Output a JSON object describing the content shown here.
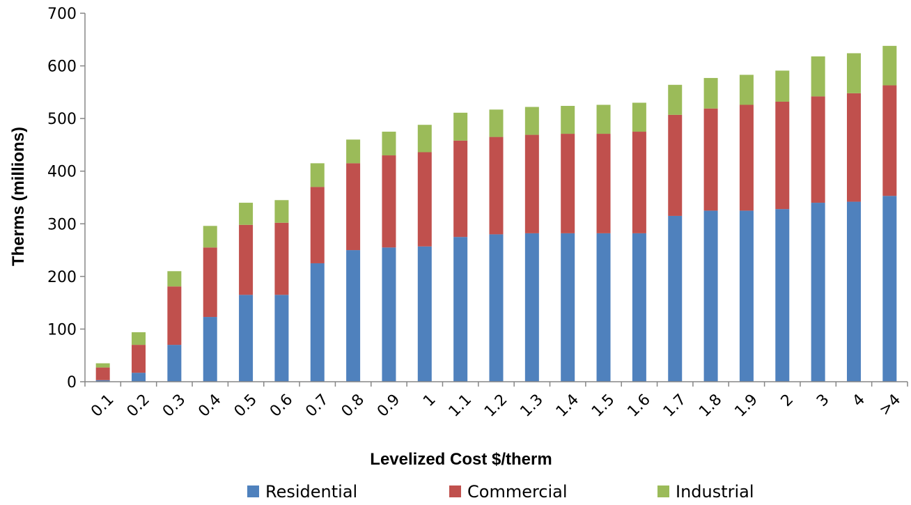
{
  "chart_data": {
    "type": "bar",
    "stacked": true,
    "categories": [
      "0.1",
      "0.2",
      "0.3",
      "0.4",
      "0.5",
      "0.6",
      "0.7",
      "0.8",
      "0.9",
      "1",
      "1.1",
      "1.2",
      "1.3",
      "1.4",
      "1.5",
      "1.6",
      "1.7",
      "1.8",
      "1.9",
      "2",
      "3",
      "4",
      ">4"
    ],
    "series": [
      {
        "name": "Residential",
        "color": "#4F81BD",
        "values": [
          3,
          17,
          70,
          123,
          165,
          165,
          225,
          250,
          255,
          257,
          275,
          280,
          282,
          282,
          282,
          282,
          315,
          325,
          325,
          328,
          340,
          342,
          353
        ]
      },
      {
        "name": "Commercial",
        "color": "#C0504D",
        "values": [
          24,
          53,
          111,
          132,
          133,
          137,
          145,
          165,
          175,
          179,
          183,
          185,
          187,
          189,
          189,
          193,
          192,
          194,
          201,
          204,
          202,
          206,
          210
        ]
      },
      {
        "name": "Industrial",
        "color": "#9BBB59",
        "values": [
          8,
          24,
          29,
          41,
          42,
          43,
          45,
          45,
          45,
          52,
          53,
          52,
          53,
          53,
          55,
          55,
          57,
          58,
          57,
          59,
          76,
          76,
          75
        ]
      }
    ],
    "title": "",
    "xlabel": "Levelized Cost $/therm",
    "ylabel": "Therms (millions)",
    "ylim": [
      0,
      700
    ],
    "yticks": [
      "0",
      "100",
      "200",
      "300",
      "400",
      "500",
      "600",
      "700"
    ],
    "grid": false,
    "legend_position": "bottom"
  }
}
